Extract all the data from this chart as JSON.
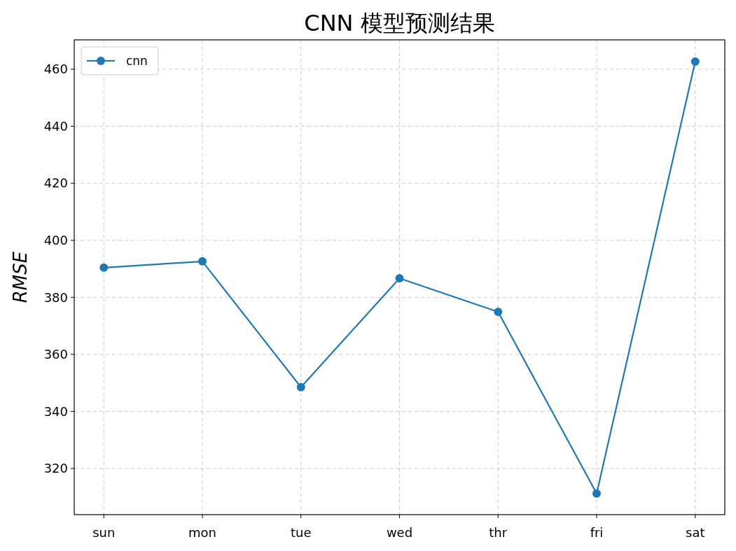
{
  "chart_data": {
    "type": "line",
    "title": "CNN 模型预测结果",
    "ylabel": "RMSE",
    "categories": [
      "sun",
      "mon",
      "tue",
      "wed",
      "thr",
      "fri",
      "sat"
    ],
    "series": [
      {
        "name": "cnn",
        "color": "#1f77b4",
        "values": [
          390.4,
          392.6,
          348.5,
          386.7,
          374.9,
          311.2,
          462.7
        ]
      }
    ],
    "ylim": [
      303.8,
      470.3
    ],
    "yticks": [
      320,
      340,
      360,
      380,
      400,
      420,
      440,
      460
    ],
    "grid": true,
    "legend": "top left",
    "marker": "circle",
    "line_style": "solid"
  }
}
